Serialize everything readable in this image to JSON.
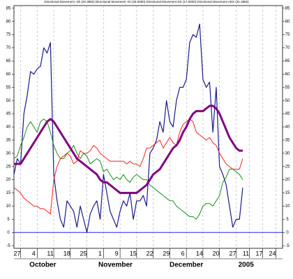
{
  "chart_data": {
    "type": "line",
    "title": "Directional Movement +DI (20.3982) Directional Movement -DI (28.0000) Directional Movement DX (17.0000) Directional Movement ADX (31.3982)",
    "x": [
      0,
      1,
      2,
      3,
      4,
      5,
      6,
      7,
      8,
      9,
      10,
      11,
      12,
      13,
      14,
      15,
      16,
      17,
      18,
      19,
      20,
      21,
      22,
      23,
      24,
      25,
      26,
      27,
      28,
      29,
      30,
      31,
      32,
      33,
      34,
      35,
      36,
      37,
      38,
      39,
      40,
      41,
      42,
      43,
      44,
      45,
      46,
      47,
      48,
      49,
      50,
      51,
      52,
      53,
      54,
      55,
      56,
      57,
      58,
      59,
      60,
      61,
      62,
      63,
      64,
      65,
      66,
      67,
      68,
      69
    ],
    "series": [
      {
        "color": "#1a1a8c",
        "width": 1.2,
        "values": [
          22,
          28,
          26,
          45,
          52,
          61,
          60,
          62,
          63,
          70,
          68,
          72,
          22,
          12,
          5,
          2,
          12,
          10,
          8,
          2,
          10,
          5,
          0,
          7,
          10,
          12,
          5,
          22,
          15,
          8,
          5,
          2,
          8,
          12,
          10,
          15,
          5,
          12,
          12,
          14,
          10,
          30,
          32,
          35,
          42,
          38,
          50,
          42,
          40,
          50,
          55,
          55,
          58,
          72,
          75,
          74,
          79,
          58,
          55,
          57,
          38,
          55,
          25,
          22,
          18,
          10,
          2,
          5,
          5,
          17
        ]
      },
      {
        "color": "#1a8c1a",
        "width": 1,
        "values": [
          28,
          29,
          33,
          36,
          40,
          42,
          40,
          38,
          42,
          43,
          42,
          38,
          33,
          30,
          28,
          28,
          30,
          31,
          33,
          30,
          28,
          30,
          29,
          26,
          27,
          28,
          27,
          23,
          24,
          22,
          20,
          21,
          20,
          22,
          20,
          19,
          21,
          22,
          21,
          20,
          20,
          18,
          17,
          16,
          15,
          14,
          13,
          12,
          12,
          10,
          9,
          8,
          7,
          6,
          6,
          5,
          7,
          10,
          11,
          11,
          10,
          12,
          14,
          19,
          21,
          24,
          24,
          23,
          22,
          20
        ]
      },
      {
        "color": "#ff2020",
        "width": 1,
        "values": [
          17,
          16,
          15,
          13,
          12,
          11,
          10,
          10,
          9,
          9,
          8,
          7,
          20,
          25,
          28,
          29,
          30,
          29,
          26,
          27,
          31,
          30,
          30,
          31,
          33,
          32,
          30,
          29,
          28,
          27,
          27,
          27,
          27,
          27,
          26,
          27,
          26,
          26,
          25,
          28,
          32,
          32,
          33,
          34,
          35,
          32,
          34,
          36,
          34,
          33,
          38,
          41,
          42,
          43,
          42,
          38,
          37,
          36,
          35,
          36,
          34,
          33,
          30,
          28,
          26,
          25,
          24,
          24,
          24,
          28
        ]
      },
      {
        "color": "#800080",
        "width": 3,
        "values": [
          26,
          26,
          26,
          28,
          30,
          32,
          34,
          36,
          38,
          40,
          42,
          43,
          42,
          40,
          38,
          36,
          34,
          32,
          30,
          28,
          27,
          26,
          25,
          24,
          23,
          22,
          20,
          19,
          19,
          18,
          17,
          16,
          15,
          15,
          15,
          15,
          15,
          15,
          16,
          17,
          18,
          20,
          22,
          23,
          24,
          26,
          28,
          30,
          32,
          33,
          35,
          38,
          40,
          43,
          45,
          46,
          46,
          46,
          47,
          48,
          48,
          47,
          45,
          42,
          39,
          36,
          34,
          32,
          31,
          31
        ]
      }
    ],
    "hlines": [
      {
        "value": 0,
        "color": "#2020ff"
      }
    ],
    "xlim": [
      0,
      81
    ],
    "xticks": [
      {
        "value": 2,
        "label": "27"
      },
      {
        "value": 7,
        "label": "4"
      },
      {
        "value": 12,
        "label": "11"
      },
      {
        "value": 17,
        "label": "18"
      },
      {
        "value": 22,
        "label": "25"
      },
      {
        "value": 27,
        "label": "1"
      },
      {
        "value": 32,
        "label": "9"
      },
      {
        "value": 37,
        "label": "15"
      },
      {
        "value": 42,
        "label": "22"
      },
      {
        "value": 47,
        "label": "29"
      },
      {
        "value": 52,
        "label": "6"
      },
      {
        "value": 57,
        "label": "14"
      },
      {
        "value": 62,
        "label": "20"
      },
      {
        "value": 67,
        "label": "27"
      },
      {
        "value": 71,
        "label": "11"
      },
      {
        "value": 75,
        "label": "17"
      },
      {
        "value": 79,
        "label": "24"
      }
    ],
    "month_ticks": [
      {
        "value": 8.7,
        "label": "October"
      },
      {
        "value": 30.6,
        "label": "November"
      },
      {
        "value": 52,
        "label": "December"
      },
      {
        "value": 70,
        "label": "2005"
      }
    ],
    "ylim": [
      -6,
      86
    ],
    "yticks": [
      -5,
      0,
      5,
      10,
      15,
      20,
      25,
      30,
      35,
      40,
      45,
      50,
      55,
      60,
      65,
      70,
      75,
      80,
      85
    ],
    "grid": "x"
  }
}
